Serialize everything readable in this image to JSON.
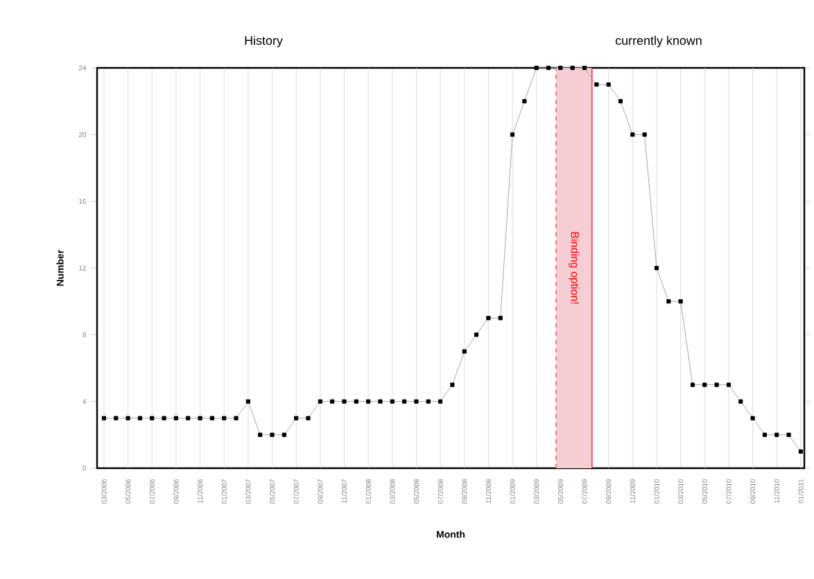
{
  "chart_data": {
    "type": "line",
    "xlabel": "Month",
    "ylabel": "Number",
    "annotations": [
      "History",
      "currently known"
    ],
    "x": [
      "2006-03",
      "2006-04",
      "2006-05",
      "2006-06",
      "2006-07",
      "2006-08",
      "2006-09",
      "2006-10",
      "2006-11",
      "2006-12",
      "2007-01",
      "2007-02",
      "2007-03",
      "2007-04",
      "2007-05",
      "2007-06",
      "2007-07",
      "2007-08",
      "2007-09",
      "2007-10",
      "2007-11",
      "2007-12",
      "2008-01",
      "2008-02",
      "2008-03",
      "2008-04",
      "2008-05",
      "2008-06",
      "2008-07",
      "2008-08",
      "2008-09",
      "2008-10",
      "2008-11",
      "2008-12",
      "2009-01",
      "2009-02",
      "2009-03",
      "2009-04",
      "2009-05",
      "2009-06",
      "2009-07",
      "2009-08",
      "2009-09",
      "2009-10",
      "2009-11",
      "2009-12",
      "2010-01",
      "2010-02",
      "2010-03",
      "2010-04",
      "2010-05",
      "2010-06",
      "2010-07",
      "2010-08",
      "2010-09",
      "2010-10",
      "2010-11",
      "2010-12",
      "2011-01"
    ],
    "series": [
      {
        "color": "#000000",
        "values": [
          3,
          3,
          3,
          3,
          3,
          3,
          3,
          3,
          3,
          3,
          3,
          3,
          4,
          2,
          2,
          2,
          3,
          3,
          4,
          4,
          4,
          4,
          4,
          4,
          4,
          4,
          4,
          4,
          4,
          5,
          7,
          8,
          9,
          9,
          20,
          22,
          24,
          24,
          24,
          24,
          24,
          23,
          23,
          22,
          20,
          20,
          12,
          10,
          10,
          5,
          5,
          5,
          5,
          4,
          3,
          2,
          2,
          2,
          1
        ]
      }
    ],
    "xlim": [
      "2006-02-14",
      "2011-01-10"
    ],
    "xticks": [
      {
        "value": "2006-03",
        "label": "03/2006"
      },
      {
        "value": "2006-05",
        "label": "05/2006"
      },
      {
        "value": "2006-07",
        "label": "07/2006"
      },
      {
        "value": "2006-09",
        "label": "09/2006"
      },
      {
        "value": "2006-11",
        "label": "11/2006"
      },
      {
        "value": "2007-01",
        "label": "01/2007"
      },
      {
        "value": "2007-03",
        "label": "03/2007"
      },
      {
        "value": "2007-05",
        "label": "05/2007"
      },
      {
        "value": "2007-07",
        "label": "07/2007"
      },
      {
        "value": "2007-09",
        "label": "09/2007"
      },
      {
        "value": "2007-11",
        "label": "11/2007"
      },
      {
        "value": "2008-01",
        "label": "01/2008"
      },
      {
        "value": "2008-03",
        "label": "03/2008"
      },
      {
        "value": "2008-05",
        "label": "05/2008"
      },
      {
        "value": "2008-07",
        "label": "07/2008"
      },
      {
        "value": "2008-09",
        "label": "09/2008"
      },
      {
        "value": "2008-11",
        "label": "11/2008"
      },
      {
        "value": "2009-01",
        "label": "01/2009"
      },
      {
        "value": "2009-03",
        "label": "03/2009"
      },
      {
        "value": "2009-05",
        "label": "05/2009"
      },
      {
        "value": "2009-07",
        "label": "07/2009"
      },
      {
        "value": "2009-09",
        "label": "09/2009"
      },
      {
        "value": "2009-11",
        "label": "11/2009"
      },
      {
        "value": "2010-01",
        "label": "01/2010"
      },
      {
        "value": "2010-03",
        "label": "03/2010"
      },
      {
        "value": "2010-05",
        "label": "05/2010"
      },
      {
        "value": "2010-07",
        "label": "07/2010"
      },
      {
        "value": "2010-09",
        "label": "09/2010"
      },
      {
        "value": "2010-11",
        "label": "11/2010"
      },
      {
        "value": "2011-01",
        "label": "01/2011"
      }
    ],
    "ylim": [
      0,
      24
    ],
    "yticks": [
      0,
      4,
      8,
      12,
      16,
      20,
      24
    ],
    "bands": [
      {
        "axis": "x",
        "from": "2009-04-20",
        "to": "2009-07-20",
        "label": "Binding option!",
        "color": "#f5cdd3"
      }
    ],
    "ref_lines": [
      {
        "axis": "x",
        "value": "2009-04-20",
        "color": "#e8505a",
        "line_style": "dashed"
      },
      {
        "axis": "x",
        "value": "2009-07-20",
        "color": "#e8202a",
        "line_style": "solid"
      }
    ],
    "grid": "x",
    "marker": "square",
    "line_style": "solid"
  }
}
